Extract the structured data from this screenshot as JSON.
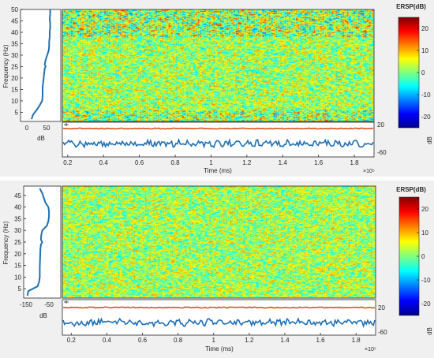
{
  "panels": [
    {
      "spectrum_ticks": [
        5,
        10,
        15,
        20,
        25,
        30,
        35,
        40,
        45,
        50
      ],
      "spectrum_xticks": [
        "0",
        "50"
      ],
      "spectrum_xlabel": "dB",
      "ylabel": "Frequency (Hz)",
      "time_ticks": [
        "0.2",
        "0.4",
        "0.6",
        "0.8",
        "1",
        "1.2",
        "1.4",
        "1.6",
        "1.8"
      ],
      "time_label": "Time (ms)",
      "time_exponent": "×10⁵",
      "trace_right_ticks": [
        "20",
        "-60"
      ],
      "colorbar_title": "ERSP(dB)",
      "colorbar_ticks": [
        "20",
        "10",
        "0",
        "-10",
        "-20"
      ],
      "colorbar_label": "dB"
    },
    {
      "spectrum_ticks": [
        5,
        10,
        15,
        20,
        25,
        30,
        35,
        40,
        45
      ],
      "spectrum_xticks": [
        "-150",
        "-50"
      ],
      "spectrum_xlabel": "dB",
      "ylabel": "Frequency (Hz)",
      "time_ticks": [
        "0.2",
        "0.4",
        "0.6",
        "0.8",
        "1",
        "1.2",
        "1.4",
        "1.6",
        "1.8"
      ],
      "time_label": "Time (ms)",
      "time_exponent": "×10⁵",
      "trace_right_ticks": [
        "20",
        "-60"
      ],
      "colorbar_title": "ERSP(dB)",
      "colorbar_ticks": [
        "20",
        "10",
        "0",
        "-10",
        "-20"
      ],
      "colorbar_label": "dB"
    }
  ],
  "chart_data": [
    {
      "type": "heatmap",
      "title": "",
      "xlabel": "Time (ms)",
      "ylabel": "Frequency (Hz)",
      "x_range": [
        17000,
        191000
      ],
      "y_range": [
        1,
        50
      ],
      "color_range": [
        -25,
        25
      ],
      "colormap": "jet",
      "colorbar_title": "ERSP(dB)",
      "spectrum_profile_dB": [
        [
          2,
          12
        ],
        [
          4,
          15
        ],
        [
          6,
          22
        ],
        [
          8,
          28
        ],
        [
          10,
          33
        ],
        [
          12,
          34
        ],
        [
          14,
          34
        ],
        [
          16,
          34
        ],
        [
          18,
          35
        ],
        [
          20,
          36
        ],
        [
          22,
          37
        ],
        [
          24,
          38
        ],
        [
          25,
          40
        ],
        [
          26,
          38
        ],
        [
          28,
          40
        ],
        [
          30,
          43
        ],
        [
          32,
          46
        ],
        [
          34,
          47
        ],
        [
          36,
          47
        ],
        [
          38,
          48
        ],
        [
          40,
          48
        ],
        [
          42,
          49
        ],
        [
          44,
          49
        ],
        [
          46,
          48
        ],
        [
          48,
          49
        ],
        [
          50,
          49
        ]
      ],
      "trace_upper_level": 20,
      "trace_lower_level": -60
    },
    {
      "type": "heatmap",
      "title": "",
      "xlabel": "Time (ms)",
      "ylabel": "Frequency (Hz)",
      "x_range": [
        15000,
        191000
      ],
      "y_range": [
        1,
        49
      ],
      "color_range": [
        -25,
        25
      ],
      "colormap": "jet",
      "colorbar_title": "ERSP(dB)",
      "spectrum_profile_dB": [
        [
          2,
          -148
        ],
        [
          4,
          -145
        ],
        [
          6,
          -115
        ],
        [
          8,
          -110
        ],
        [
          10,
          -108
        ],
        [
          14,
          -108
        ],
        [
          18,
          -107
        ],
        [
          22,
          -106
        ],
        [
          24,
          -104
        ],
        [
          25,
          -100
        ],
        [
          26,
          -104
        ],
        [
          28,
          -103
        ],
        [
          30,
          -100
        ],
        [
          32,
          -85
        ],
        [
          34,
          -80
        ],
        [
          36,
          -78
        ],
        [
          38,
          -78
        ],
        [
          40,
          -80
        ],
        [
          42,
          -90
        ],
        [
          44,
          -95
        ],
        [
          46,
          -100
        ],
        [
          48,
          -108
        ]
      ],
      "trace_upper_level": 20,
      "trace_lower_level": -60
    }
  ]
}
